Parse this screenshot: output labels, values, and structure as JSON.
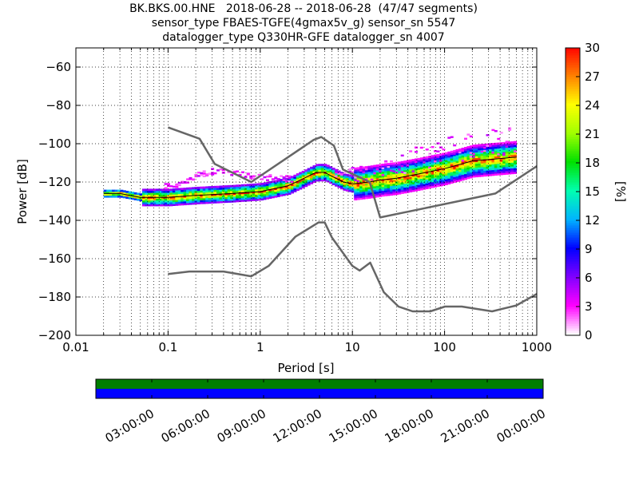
{
  "title": {
    "line1": "BK.BKS.00.HNE   2018-06-28 -- 2018-06-28  (47/47 segments)",
    "line2": "sensor_type FBAES-TGFE(4gmax5v_g) sensor_sn 5547",
    "line3": "datalogger_type Q330HR-GFE datalogger_sn 4007"
  },
  "chart_data": [
    {
      "type": "heatmap",
      "subtype": "probabilistic-power-spectral-density",
      "xlabel": "Period [s]",
      "ylabel": "Power [dB]",
      "xscale": "log",
      "xlim": [
        0.01,
        1000
      ],
      "ylim": [
        -200,
        -50
      ],
      "x_ticks": [
        0.01,
        0.1,
        1,
        10,
        100,
        1000
      ],
      "x_tick_labels": [
        "0.01",
        "0.1",
        "1",
        "10",
        "100",
        "1000"
      ],
      "y_ticks": [
        -200,
        -180,
        -160,
        -140,
        -120,
        -100,
        -80,
        -60
      ],
      "y_tick_labels": [
        "−200",
        "−180",
        "−160",
        "−140",
        "−120",
        "−100",
        "−80",
        "−60"
      ],
      "grid": true,
      "colorbar": {
        "label": "[%]",
        "range": [
          0,
          30
        ],
        "ticks": [
          0,
          3,
          6,
          9,
          12,
          15,
          18,
          21,
          24,
          27,
          30
        ],
        "colormap": [
          "#ffffff",
          "#ff00ff",
          "#8000ff",
          "#0000ff",
          "#00b4ff",
          "#00ffb0",
          "#00e000",
          "#a0ff00",
          "#ffff00",
          "#ff8000",
          "#ff0000"
        ]
      },
      "noise_models": {
        "color": "#666666",
        "high": {
          "period": [
            0.1,
            0.22,
            0.32,
            0.8,
            3.8,
            4.6,
            6.3,
            7.9,
            15.4,
            20,
            354.8,
            10000
          ],
          "power": [
            -91.5,
            -97.4,
            -110.5,
            -120,
            -98,
            -96.5,
            -101,
            -113.5,
            -120,
            -138.5,
            -126,
            -80.1
          ]
        },
        "low": {
          "period": [
            0.1,
            0.17,
            0.4,
            0.8,
            1.24,
            2.4,
            4.3,
            5,
            6,
            10,
            12,
            15.6,
            21.9,
            31.6,
            45,
            70,
            101,
            154,
            328,
            600,
            10000
          ],
          "power": [
            -168,
            -166.7,
            -166.7,
            -169.2,
            -163.7,
            -148.6,
            -141.1,
            -141.1,
            -149,
            -163.8,
            -166.2,
            -162.1,
            -177.5,
            -185,
            -187.5,
            -187.5,
            -185,
            -185,
            -187.5,
            -184.4,
            -151.5
          ]
        }
      },
      "mode_curve": {
        "period": [
          0.02,
          0.03,
          0.05,
          0.1,
          0.2,
          0.5,
          1,
          2,
          3,
          4,
          5,
          6,
          8,
          10,
          15,
          20,
          30,
          50,
          100,
          200,
          600
        ],
        "power": [
          -126,
          -126,
          -128,
          -128,
          -127,
          -126,
          -125,
          -122,
          -118,
          -115,
          -115,
          -117,
          -120,
          -121,
          -120,
          -119,
          -118,
          -116,
          -113,
          -109,
          -107
        ]
      },
      "upper_scatter": {
        "period": [
          0.1,
          0.15,
          0.2,
          0.3,
          0.5,
          0.7,
          1,
          2,
          3,
          5,
          8,
          10,
          15,
          20,
          30,
          50,
          100,
          200,
          400,
          600
        ],
        "power": [
          -121,
          -118,
          -115,
          -113,
          -114,
          -115,
          -116,
          -117,
          -117,
          -116,
          -113,
          -112,
          -111,
          -110,
          -106,
          -101,
          -97,
          -94,
          -92,
          -91
        ]
      }
    },
    {
      "type": "timeline",
      "description": "data availability",
      "tick_labels": [
        "03:00:00",
        "06:00:00",
        "09:00:00",
        "12:00:00",
        "15:00:00",
        "18:00:00",
        "21:00:00",
        "00:00:00"
      ],
      "bands": [
        {
          "color": "#007f00",
          "coverage": [
            0,
            1
          ]
        },
        {
          "color": "#0000ff",
          "coverage": [
            0,
            1
          ]
        }
      ]
    }
  ]
}
